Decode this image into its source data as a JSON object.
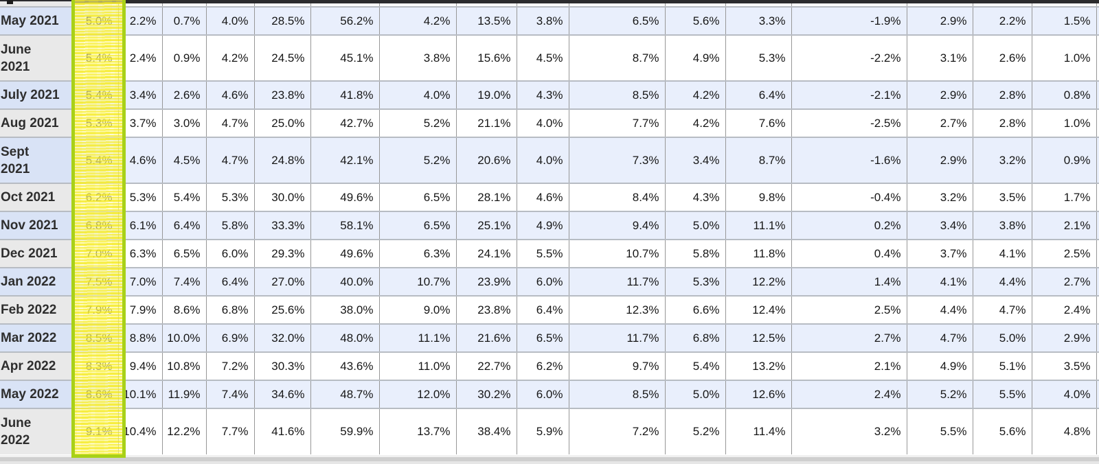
{
  "chart_data": {
    "type": "table",
    "title": "",
    "column_headers_visible": false,
    "row_header": "month",
    "highlighted_column_index": 0,
    "rows": [
      {
        "label": "May 2021",
        "wrap": false,
        "values": [
          "5.0%",
          "2.2%",
          "0.7%",
          "4.0%",
          "28.5%",
          "56.2%",
          "4.2%",
          "13.5%",
          "3.8%",
          "6.5%",
          "5.6%",
          "3.3%",
          "-1.9%",
          "2.9%",
          "2.2%",
          "1.5%"
        ]
      },
      {
        "label": "June 2021",
        "wrap": true,
        "values": [
          "5.4%",
          "2.4%",
          "0.9%",
          "4.2%",
          "24.5%",
          "45.1%",
          "3.8%",
          "15.6%",
          "4.5%",
          "8.7%",
          "4.9%",
          "5.3%",
          "-2.2%",
          "3.1%",
          "2.6%",
          "1.0%"
        ]
      },
      {
        "label": "July 2021",
        "wrap": false,
        "values": [
          "5.4%",
          "3.4%",
          "2.6%",
          "4.6%",
          "23.8%",
          "41.8%",
          "4.0%",
          "19.0%",
          "4.3%",
          "8.5%",
          "4.2%",
          "6.4%",
          "-2.1%",
          "2.9%",
          "2.8%",
          "0.8%"
        ]
      },
      {
        "label": "Aug 2021",
        "wrap": false,
        "values": [
          "5.3%",
          "3.7%",
          "3.0%",
          "4.7%",
          "25.0%",
          "42.7%",
          "5.2%",
          "21.1%",
          "4.0%",
          "7.7%",
          "4.2%",
          "7.6%",
          "-2.5%",
          "2.7%",
          "2.8%",
          "1.0%"
        ]
      },
      {
        "label": "Sept 2021",
        "wrap": true,
        "values": [
          "5.4%",
          "4.6%",
          "4.5%",
          "4.7%",
          "24.8%",
          "42.1%",
          "5.2%",
          "20.6%",
          "4.0%",
          "7.3%",
          "3.4%",
          "8.7%",
          "-1.6%",
          "2.9%",
          "3.2%",
          "0.9%"
        ]
      },
      {
        "label": "Oct 2021",
        "wrap": false,
        "values": [
          "6.2%",
          "5.3%",
          "5.4%",
          "5.3%",
          "30.0%",
          "49.6%",
          "6.5%",
          "28.1%",
          "4.6%",
          "8.4%",
          "4.3%",
          "9.8%",
          "-0.4%",
          "3.2%",
          "3.5%",
          "1.7%"
        ]
      },
      {
        "label": "Nov 2021",
        "wrap": false,
        "values": [
          "6.8%",
          "6.1%",
          "6.4%",
          "5.8%",
          "33.3%",
          "58.1%",
          "6.5%",
          "25.1%",
          "4.9%",
          "9.4%",
          "5.0%",
          "11.1%",
          "0.2%",
          "3.4%",
          "3.8%",
          "2.1%"
        ]
      },
      {
        "label": "Dec 2021",
        "wrap": false,
        "values": [
          "7.0%",
          "6.3%",
          "6.5%",
          "6.0%",
          "29.3%",
          "49.6%",
          "6.3%",
          "24.1%",
          "5.5%",
          "10.7%",
          "5.8%",
          "11.8%",
          "0.4%",
          "3.7%",
          "4.1%",
          "2.5%"
        ]
      },
      {
        "label": "Jan 2022",
        "wrap": false,
        "values": [
          "7.5%",
          "7.0%",
          "7.4%",
          "6.4%",
          "27.0%",
          "40.0%",
          "10.7%",
          "23.9%",
          "6.0%",
          "11.7%",
          "5.3%",
          "12.2%",
          "1.4%",
          "4.1%",
          "4.4%",
          "2.7%"
        ]
      },
      {
        "label": "Feb 2022",
        "wrap": false,
        "values": [
          "7.9%",
          "7.9%",
          "8.6%",
          "6.8%",
          "25.6%",
          "38.0%",
          "9.0%",
          "23.8%",
          "6.4%",
          "12.3%",
          "6.6%",
          "12.4%",
          "2.5%",
          "4.4%",
          "4.7%",
          "2.4%"
        ]
      },
      {
        "label": "Mar 2022",
        "wrap": false,
        "values": [
          "8.5%",
          "8.8%",
          "10.0%",
          "6.9%",
          "32.0%",
          "48.0%",
          "11.1%",
          "21.6%",
          "6.5%",
          "11.7%",
          "6.8%",
          "12.5%",
          "2.7%",
          "4.7%",
          "5.0%",
          "2.9%"
        ]
      },
      {
        "label": "Apr 2022",
        "wrap": false,
        "values": [
          "8.3%",
          "9.4%",
          "10.8%",
          "7.2%",
          "30.3%",
          "43.6%",
          "11.0%",
          "22.7%",
          "6.2%",
          "9.7%",
          "5.4%",
          "13.2%",
          "2.1%",
          "4.9%",
          "5.1%",
          "3.5%"
        ]
      },
      {
        "label": "May 2022",
        "wrap": false,
        "values": [
          "8.6%",
          "10.1%",
          "11.9%",
          "7.4%",
          "34.6%",
          "48.7%",
          "12.0%",
          "30.2%",
          "6.0%",
          "8.5%",
          "5.0%",
          "12.6%",
          "2.4%",
          "5.2%",
          "5.5%",
          "4.0%"
        ]
      },
      {
        "label": "June 2022",
        "wrap": true,
        "values": [
          "9.1%",
          "10.4%",
          "12.2%",
          "7.7%",
          "41.6%",
          "59.9%",
          "13.7%",
          "38.4%",
          "5.9%",
          "7.2%",
          "5.2%",
          "11.4%",
          "3.2%",
          "5.5%",
          "5.6%",
          "4.8%"
        ]
      }
    ]
  },
  "annotation": {
    "kind": "hand-drawn-marker-highlight",
    "covers": "first data column",
    "fill_color": "#f7ee34",
    "border_color": "#a8d118"
  },
  "colors": {
    "row_alt": "#e9effc",
    "row_plain": "#ffffff",
    "label_alt": "#d9e3f6",
    "label_plain": "#e9e9e9",
    "border_vertical": "#979797",
    "border_horizontal": "#b7bcc3",
    "text": "#161616"
  }
}
